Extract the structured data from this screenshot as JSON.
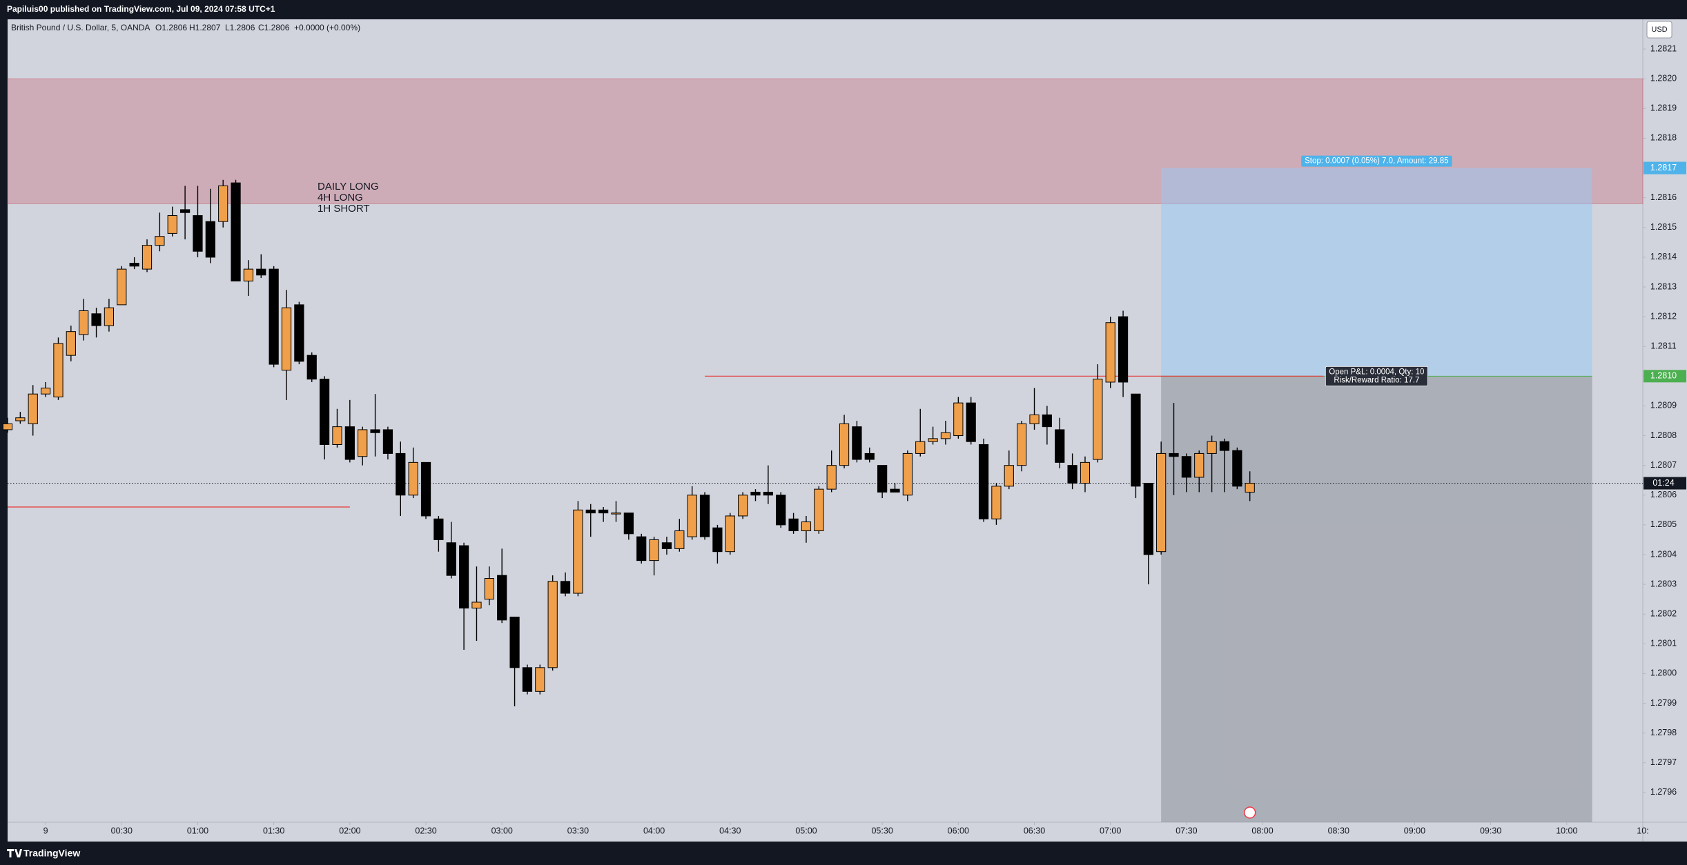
{
  "header": {
    "publisher": "Papiluis00 published on TradingView.com, Jul 09, 2024 07:58 UTC+1"
  },
  "chart_data": {
    "type": "candlestick",
    "symbol": "British Pound / U.S. Dollar, 5, OANDA",
    "legend": {
      "open": "O1.2806",
      "high": "H1.2807",
      "low": "L1.2806",
      "close": "C1.2806",
      "change": "+0.0000 (+0.00%)"
    },
    "currency": "USD",
    "up_color": "#f0a04b",
    "down_color": "#000000",
    "x": [
      -15,
      -10,
      -5,
      0,
      5,
      10,
      15,
      20,
      25,
      30,
      35,
      40,
      45,
      50,
      55,
      60,
      65,
      70,
      75,
      80,
      85,
      90,
      95,
      100,
      105,
      110,
      115,
      120,
      125,
      130,
      135,
      140,
      145,
      150,
      155,
      160,
      165,
      170,
      175,
      180,
      185,
      190,
      195,
      200,
      205,
      210,
      215,
      220,
      225,
      230,
      235,
      240,
      245,
      250,
      255,
      260,
      265,
      270,
      275,
      280,
      285,
      290,
      295,
      300,
      305,
      310,
      315,
      320,
      325,
      330,
      335,
      340,
      345,
      350,
      355,
      360,
      365,
      370,
      375,
      380,
      385,
      390,
      395,
      400,
      405,
      410,
      415,
      420,
      425,
      430,
      435,
      440,
      445,
      450,
      455,
      460,
      465,
      470,
      475
    ],
    "open": [
      1.28082,
      1.28085,
      1.28084,
      1.28094,
      1.28093,
      1.28107,
      1.28114,
      1.28121,
      1.28117,
      1.28124,
      1.28138,
      1.28136,
      1.28144,
      1.28148,
      1.28156,
      1.28154,
      1.28152,
      1.28152,
      1.28165,
      1.28132,
      1.28136,
      1.28136,
      1.28102,
      1.28124,
      1.28107,
      1.28099,
      1.28077,
      1.28083,
      1.28073,
      1.28082,
      1.28082,
      1.28074,
      1.2806,
      1.28071,
      1.28052,
      1.28044,
      1.28043,
      1.28022,
      1.28025,
      1.28033,
      1.28019,
      1.28002,
      1.27994,
      1.28002,
      1.28031,
      1.28027,
      1.28055,
      1.28055,
      1.28054,
      1.28054,
      1.28046,
      1.28038,
      1.28044,
      1.28042,
      1.28046,
      1.2806,
      1.28049,
      1.28041,
      1.28053,
      1.28061,
      1.28061,
      1.2806,
      1.28052,
      1.28048,
      1.28048,
      1.28062,
      1.2807,
      1.28083,
      1.28074,
      1.2807,
      1.28062,
      1.2806,
      1.28074,
      1.28078,
      1.28079,
      1.2808,
      1.28091,
      1.28077,
      1.28052,
      1.28063,
      1.2807,
      1.28084,
      1.28087,
      1.28082,
      1.2807,
      1.28064,
      1.28072,
      1.28098,
      1.2812,
      1.28094,
      1.28064,
      1.28041,
      1.28074,
      1.28073,
      1.28066,
      1.28074,
      1.28078,
      1.28075,
      1.28061
    ],
    "high": [
      1.28086,
      1.28088,
      1.28097,
      1.28098,
      1.28113,
      1.28117,
      1.28126,
      1.28123,
      1.28126,
      1.28137,
      1.2814,
      1.28146,
      1.28155,
      1.28157,
      1.28164,
      1.28164,
      1.28163,
      1.28166,
      1.28166,
      1.28139,
      1.28141,
      1.28137,
      1.28129,
      1.28125,
      1.28108,
      1.281,
      1.28089,
      1.28092,
      1.28083,
      1.28094,
      1.28083,
      1.28078,
      1.28076,
      1.28071,
      1.28053,
      1.28051,
      1.28044,
      1.28036,
      1.28036,
      1.28042,
      1.28019,
      1.28003,
      1.28003,
      1.28033,
      1.28034,
      1.28058,
      1.28057,
      1.28056,
      1.28058,
      1.28054,
      1.28047,
      1.28046,
      1.28046,
      1.28052,
      1.28063,
      1.28061,
      1.2805,
      1.28054,
      1.28061,
      1.28062,
      1.2807,
      1.28061,
      1.28054,
      1.28053,
      1.28063,
      1.28075,
      1.28087,
      1.28085,
      1.28076,
      1.2807,
      1.28064,
      1.28075,
      1.28089,
      1.28083,
      1.28085,
      1.28093,
      1.28093,
      1.28079,
      1.28064,
      1.28075,
      1.28085,
      1.28096,
      1.2809,
      1.28086,
      1.28074,
      1.28073,
      1.28104,
      1.2812,
      1.28122,
      1.28094,
      1.28064,
      1.28078,
      1.28091,
      1.28074,
      1.28075,
      1.2808,
      1.28079,
      1.28076,
      1.28068
    ],
    "low": [
      1.28081,
      1.28084,
      1.2808,
      1.28093,
      1.28092,
      1.28105,
      1.28112,
      1.28113,
      1.28115,
      1.28124,
      1.28136,
      1.28135,
      1.28142,
      1.28147,
      1.28146,
      1.2814,
      1.28138,
      1.2815,
      1.28132,
      1.28127,
      1.28133,
      1.28103,
      1.28092,
      1.28104,
      1.28098,
      1.28072,
      1.28076,
      1.28071,
      1.2807,
      1.28073,
      1.28072,
      1.28053,
      1.28059,
      1.28052,
      1.28041,
      1.28032,
      1.28008,
      1.28011,
      1.28023,
      1.28017,
      1.27989,
      1.27993,
      1.27993,
      1.28001,
      1.28026,
      1.28026,
      1.28046,
      1.28051,
      1.28051,
      1.28045,
      1.28037,
      1.28033,
      1.2804,
      1.28041,
      1.28045,
      1.28045,
      1.28037,
      1.2804,
      1.28052,
      1.28058,
      1.28057,
      1.28049,
      1.28047,
      1.28044,
      1.28047,
      1.28061,
      1.28069,
      1.28071,
      1.28071,
      1.28059,
      1.28061,
      1.28058,
      1.28073,
      1.28077,
      1.28077,
      1.28079,
      1.28077,
      1.28051,
      1.2805,
      1.28062,
      1.28068,
      1.28082,
      1.28077,
      1.28069,
      1.28062,
      1.28061,
      1.28071,
      1.28096,
      1.28093,
      1.28059,
      1.2803,
      1.2804,
      1.2806,
      1.28061,
      1.28061,
      1.28061,
      1.28061,
      1.28062,
      1.28058
    ],
    "close": [
      1.28084,
      1.28086,
      1.28094,
      1.28096,
      1.28111,
      1.28115,
      1.28122,
      1.28117,
      1.28123,
      1.28136,
      1.28137,
      1.28144,
      1.28147,
      1.28154,
      1.28155,
      1.28142,
      1.2814,
      1.28164,
      1.28132,
      1.28136,
      1.28134,
      1.28104,
      1.28123,
      1.28105,
      1.28099,
      1.28077,
      1.28083,
      1.28072,
      1.28082,
      1.28081,
      1.28074,
      1.2806,
      1.28071,
      1.28053,
      1.28045,
      1.28033,
      1.28022,
      1.28024,
      1.28032,
      1.28018,
      1.28002,
      1.27994,
      1.28002,
      1.28031,
      1.28027,
      1.28055,
      1.28054,
      1.28054,
      1.28054,
      1.28047,
      1.28038,
      1.28045,
      1.28042,
      1.28048,
      1.2806,
      1.28046,
      1.28041,
      1.28053,
      1.2806,
      1.2806,
      1.2806,
      1.2805,
      1.28048,
      1.28051,
      1.28062,
      1.2807,
      1.28084,
      1.28072,
      1.28072,
      1.28061,
      1.28061,
      1.28074,
      1.28078,
      1.28079,
      1.28081,
      1.28091,
      1.28078,
      1.28052,
      1.28063,
      1.2807,
      1.28084,
      1.28087,
      1.28083,
      1.28071,
      1.28064,
      1.28071,
      1.28099,
      1.28118,
      1.28098,
      1.28063,
      1.2804,
      1.28074,
      1.28073,
      1.28066,
      1.28074,
      1.28078,
      1.28075,
      1.28063,
      1.28064
    ],
    "xlim": [
      -15,
      630
    ],
    "xticks": [
      {
        "value": 0,
        "label": "9"
      },
      {
        "value": 30,
        "label": "00:30"
      },
      {
        "value": 60,
        "label": "01:00"
      },
      {
        "value": 90,
        "label": "01:30"
      },
      {
        "value": 120,
        "label": "02:00"
      },
      {
        "value": 150,
        "label": "02:30"
      },
      {
        "value": 180,
        "label": "03:00"
      },
      {
        "value": 210,
        "label": "03:30"
      },
      {
        "value": 240,
        "label": "04:00"
      },
      {
        "value": 270,
        "label": "04:30"
      },
      {
        "value": 300,
        "label": "05:00"
      },
      {
        "value": 330,
        "label": "05:30"
      },
      {
        "value": 360,
        "label": "06:00"
      },
      {
        "value": 390,
        "label": "06:30"
      },
      {
        "value": 420,
        "label": "07:00"
      },
      {
        "value": 450,
        "label": "07:30"
      },
      {
        "value": 480,
        "label": "08:00"
      },
      {
        "value": 510,
        "label": "08:30"
      },
      {
        "value": 540,
        "label": "09:00"
      },
      {
        "value": 570,
        "label": "09:30"
      },
      {
        "value": 600,
        "label": "10:00"
      },
      {
        "value": 630,
        "label": "10:"
      }
    ],
    "ylim": [
      1.2795,
      1.2822
    ],
    "yticks": [
      1.2796,
      1.2797,
      1.2798,
      1.2799,
      {
        "value": 1.28,
        "label": "1.2800"
      },
      1.2801,
      1.2802,
      1.2803,
      1.2804,
      1.2805,
      1.2806,
      1.2807,
      1.2808,
      1.2809,
      {
        "value": 1.281,
        "label": "1.2810"
      },
      1.2811,
      1.2812,
      1.2813,
      1.2814,
      1.2815,
      1.2816,
      1.2817,
      1.2818,
      1.2819,
      {
        "value": 1.282,
        "label": "1.2820"
      },
      1.2821
    ],
    "zone": {
      "from": 1.28158,
      "to": 1.282,
      "color": "#c85064"
    },
    "levels": [
      {
        "value": 1.281,
        "start": 260,
        "end": 504
      },
      {
        "value": 1.28056,
        "start": -15,
        "end": 120
      }
    ],
    "level_color": "#e53935",
    "annotation": [
      "DAILY LONG",
      "4H LONG",
      "1H SHORT"
    ],
    "position": {
      "start": 440,
      "end": 610,
      "entry": {
        "value": 1.281,
        "label": "1.2810"
      },
      "target": 1.2817,
      "target_label": "Stop: 0.0007 (0.05%) 7.0, Amount: 29.85",
      "entry_labels": [
        "Open P&L: 0.0004, Qty: 10",
        "Risk/Reward Ratio: 17.7"
      ]
    },
    "countdown": "01:24"
  },
  "footer": {
    "brand": "TradingView"
  }
}
